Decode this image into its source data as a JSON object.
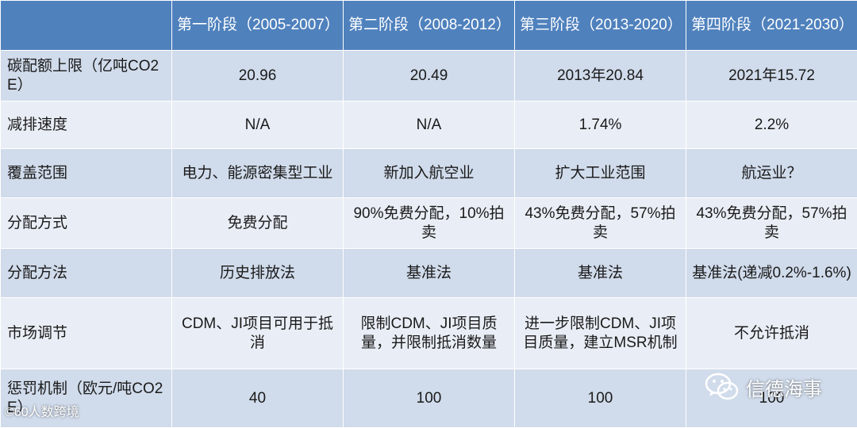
{
  "table": {
    "header": [
      "",
      "第一阶段（2005-2007）",
      "第二阶段（2008-2012）",
      "第三阶段（2013-2020）",
      "第四阶段（2021-2030）"
    ],
    "rows": [
      {
        "label": "碳配额上限（亿吨CO2E）",
        "cells": [
          "20.96",
          "20.49",
          "2013年20.84",
          "2021年15.72"
        ]
      },
      {
        "label": "减排速度",
        "cells": [
          "N/A",
          "N/A",
          "1.74%",
          "2.2%"
        ]
      },
      {
        "label": "覆盖范围",
        "cells": [
          "电力、能源密集型工业",
          "新加入航空业",
          "扩大工业范围",
          "航运业？"
        ]
      },
      {
        "label": "分配方式",
        "cells": [
          "免费分配",
          "90%免费分配，10%拍卖",
          "43%免费分配，57%拍卖",
          "43%免费分配，57%拍卖"
        ]
      },
      {
        "label": "分配方法",
        "cells": [
          "历史排放法",
          "基准法",
          "基准法",
          "基准法(递减0.2%-1.6%)"
        ]
      },
      {
        "label": "市场调节",
        "cells": [
          "CDM、JI项目可用于抵消",
          "限制CDM、JI项目质量，并限制抵消数量",
          "进一步限制CDM、JI项目质量，建立MSR机制",
          "不允许抵消"
        ]
      },
      {
        "label": "惩罚机制（欧元/吨CO2E）",
        "cells": [
          "40",
          "100",
          "100",
          "100"
        ]
      }
    ]
  },
  "watermarks": {
    "account_name": "信德海事",
    "account_icon": "wechat-icon",
    "source_label": "©60人数跨境"
  },
  "colors": {
    "header_bg": "#4f81bd",
    "row_dark_bg": "#d0dbeb",
    "row_light_bg": "#e9eef6"
  }
}
